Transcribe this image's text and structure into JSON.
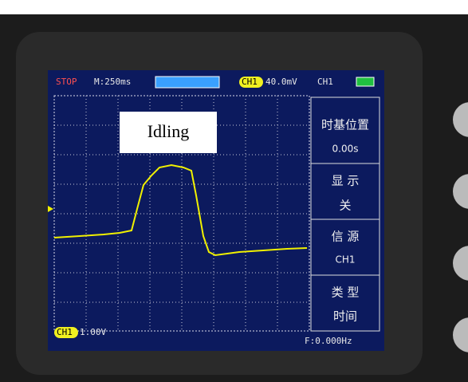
{
  "top_bar": {
    "status": "STOP",
    "timebase": "M:250ms",
    "trigger_channel": "CH1",
    "trigger_level": "40.0mV",
    "channel": "CH1"
  },
  "annotation": "Idling",
  "menu": [
    {
      "title": "时基位置",
      "value": "0.00s"
    },
    {
      "title": "显 示",
      "value": "关"
    },
    {
      "title": "信 源",
      "value": "CH1"
    },
    {
      "title": "类 型",
      "value": "时间"
    }
  ],
  "bottom_bar": {
    "channel": "CH1",
    "scale": "1.00V",
    "frequency": "F:0.000Hz"
  }
}
